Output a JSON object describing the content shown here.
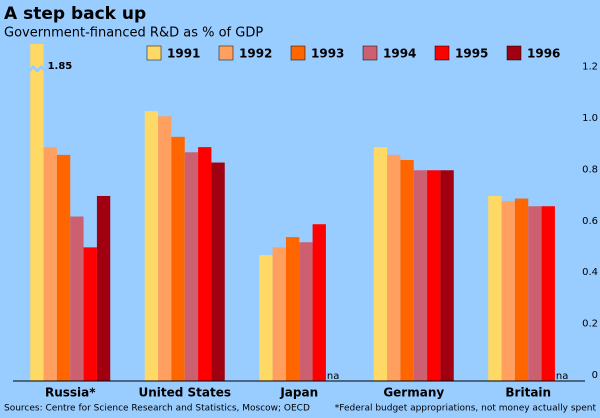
{
  "chart_data": {
    "type": "bar",
    "title": "A step back up",
    "subtitle": "Government-financed R&D as % of GDP",
    "categories": [
      "Russia*",
      "United States",
      "Japan",
      "Germany",
      "Britain"
    ],
    "series": [
      {
        "name": "1991",
        "color": "#ffd966",
        "values": [
          1.85,
          1.05,
          0.49,
          0.91,
          0.72
        ],
        "value_labels": [
          "1.85",
          null,
          null,
          null,
          null
        ]
      },
      {
        "name": "1992",
        "color": "#ffa060",
        "values": [
          0.91,
          1.03,
          0.52,
          0.88,
          0.7
        ]
      },
      {
        "name": "1993",
        "color": "#ff6600",
        "values": [
          0.88,
          0.95,
          0.56,
          0.86,
          0.71
        ]
      },
      {
        "name": "1994",
        "color": "#cc6070",
        "values": [
          0.64,
          0.89,
          0.54,
          0.82,
          0.68
        ]
      },
      {
        "name": "1995",
        "color": "#ff0000",
        "values": [
          0.52,
          0.91,
          0.61,
          0.82,
          0.68
        ]
      },
      {
        "name": "1996",
        "color": "#a00010",
        "values": [
          0.72,
          0.85,
          null,
          0.82,
          null
        ]
      }
    ],
    "missing_label": "na",
    "ylim": [
      0,
      1.3
    ],
    "yticks": [
      0,
      0.2,
      0.4,
      0.6,
      0.8,
      {
        "value": 1,
        "label": "1.0"
      },
      1.2
    ],
    "axis_break": true,
    "source": "Sources: Centre for Science Research and Statistics, Moscow; OECD",
    "footnote": "*Federal budget appropriations, not money actually spent"
  }
}
